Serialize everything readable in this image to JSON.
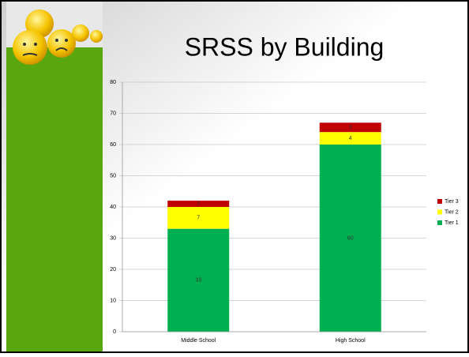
{
  "chart_data": {
    "type": "stacked-bar",
    "title": "SRSS by Building",
    "categories": [
      "Middle School",
      "High School"
    ],
    "series": [
      {
        "name": "Tier 1",
        "color": "#00b050",
        "values": [
          33,
          60
        ]
      },
      {
        "name": "Tier 2",
        "color": "#ffff00",
        "values": [
          7,
          4
        ]
      },
      {
        "name": "Tier 3",
        "color": "#c00000",
        "values": [
          2,
          3
        ]
      }
    ],
    "ylim": [
      0,
      80
    ],
    "yticks": [
      0,
      10,
      20,
      30,
      40,
      50,
      60,
      70,
      80
    ],
    "grid": true,
    "legend": "right"
  }
}
